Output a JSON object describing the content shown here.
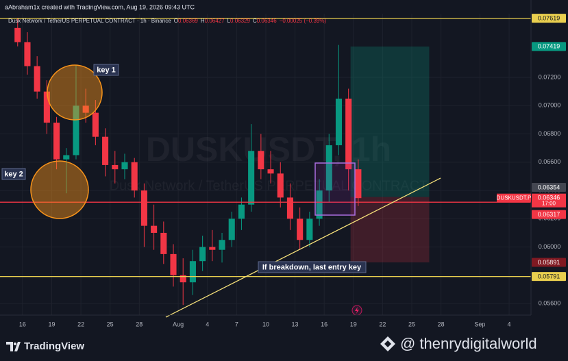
{
  "header": {
    "attribution": "aAbraham1x created with TradingView.com, Aug 19, 2026 09:43 UTC"
  },
  "chart_data": {
    "type": "candlestick",
    "symbol": "Dusk Network / TetherUS PERPETUAL CONTRACT · 1h · Binance",
    "legend_values": [
      {
        "label": "O",
        "value": "0.06369"
      },
      {
        "label": "H",
        "value": "0.06427"
      },
      {
        "label": "L",
        "value": "0.06329"
      },
      {
        "label": "C",
        "value": "0.06346"
      }
    ],
    "change": "−0.00025 (−0.39%)",
    "watermark": "DUSKUSDT, 1h",
    "watermark_subtitle": "Dusk Network / TetherUS PERPETUAL CONTRACT",
    "x": [
      "2026-07-15",
      "2026-07-16",
      "2026-07-17",
      "2026-07-18",
      "2026-07-19",
      "2026-07-20",
      "2026-07-21",
      "2026-07-22",
      "2026-07-23",
      "2026-07-24",
      "2026-07-25",
      "2026-07-26",
      "2026-07-27",
      "2026-07-28",
      "2026-07-29",
      "2026-07-30",
      "2026-07-31",
      "2026-08-01",
      "2026-08-02",
      "2026-08-03",
      "2026-08-04",
      "2026-08-05",
      "2026-08-06",
      "2026-08-07",
      "2026-08-08",
      "2026-08-09",
      "2026-08-10",
      "2026-08-11",
      "2026-08-12",
      "2026-08-13",
      "2026-08-14",
      "2026-08-15",
      "2026-08-16",
      "2026-08-17",
      "2026-08-18",
      "2026-08-19"
    ],
    "open": [
      0.0755,
      0.0745,
      0.0728,
      0.071,
      0.0688,
      0.0662,
      0.0665,
      0.07,
      0.0695,
      0.0678,
      0.0658,
      0.0655,
      0.066,
      0.064,
      0.0615,
      0.061,
      0.0595,
      0.058,
      0.0575,
      0.059,
      0.06,
      0.0598,
      0.0605,
      0.062,
      0.063,
      0.0668,
      0.0655,
      0.0652,
      0.0635,
      0.062,
      0.0605,
      0.062,
      0.064,
      0.0672,
      0.0705,
      0.0655
    ],
    "high": [
      0.0762,
      0.0752,
      0.0735,
      0.0718,
      0.0692,
      0.067,
      0.0729,
      0.0712,
      0.0704,
      0.0684,
      0.0668,
      0.0666,
      0.0663,
      0.0645,
      0.063,
      0.0618,
      0.0602,
      0.0592,
      0.0598,
      0.0608,
      0.0612,
      0.061,
      0.0625,
      0.0635,
      0.0687,
      0.068,
      0.0668,
      0.066,
      0.0645,
      0.0628,
      0.0625,
      0.0648,
      0.068,
      0.0743,
      0.0712,
      0.0662
    ],
    "low": [
      0.0742,
      0.0722,
      0.0705,
      0.068,
      0.0655,
      0.0638,
      0.0662,
      0.0688,
      0.0672,
      0.065,
      0.0645,
      0.0648,
      0.0635,
      0.06,
      0.0598,
      0.0588,
      0.0572,
      0.0559,
      0.0566,
      0.0583,
      0.059,
      0.0589,
      0.06,
      0.0612,
      0.0625,
      0.0648,
      0.0645,
      0.0628,
      0.0612,
      0.0598,
      0.06,
      0.0615,
      0.0632,
      0.0665,
      0.064,
      0.0629
    ],
    "close": [
      0.0745,
      0.0728,
      0.071,
      0.0688,
      0.0662,
      0.0665,
      0.07,
      0.0695,
      0.0678,
      0.0658,
      0.0655,
      0.066,
      0.064,
      0.0615,
      0.061,
      0.0595,
      0.058,
      0.0575,
      0.059,
      0.06,
      0.0598,
      0.0605,
      0.062,
      0.063,
      0.0668,
      0.0655,
      0.0652,
      0.0635,
      0.062,
      0.0605,
      0.062,
      0.064,
      0.0672,
      0.0705,
      0.0655,
      0.06346
    ],
    "colors": {
      "up": "#089981",
      "down": "#f23645"
    },
    "xlim": [
      "2026-07-14T06:00",
      "2026-09-06T06:00"
    ],
    "xticks": [
      {
        "value": "2026-07-16",
        "label": "16"
      },
      {
        "value": "2026-07-19",
        "label": "19"
      },
      {
        "value": "2026-07-22",
        "label": "22"
      },
      {
        "value": "2026-07-25",
        "label": "25"
      },
      {
        "value": "2026-07-28",
        "label": "28"
      },
      {
        "value": "2026-08-01",
        "label": "Aug"
      },
      {
        "value": "2026-08-04",
        "label": "4"
      },
      {
        "value": "2026-08-07",
        "label": "7"
      },
      {
        "value": "2026-08-10",
        "label": "10"
      },
      {
        "value": "2026-08-13",
        "label": "13"
      },
      {
        "value": "2026-08-16",
        "label": "16"
      },
      {
        "value": "2026-08-19",
        "label": "19"
      },
      {
        "value": "2026-08-22",
        "label": "22"
      },
      {
        "value": "2026-08-25",
        "label": "25"
      },
      {
        "value": "2026-08-28",
        "label": "28"
      },
      {
        "value": "2026-09-01",
        "label": "Sep"
      },
      {
        "value": "2026-09-04",
        "label": "4"
      }
    ],
    "ylim": [
      0.05518,
      0.07651
    ],
    "yticks": [
      {
        "value": 0.056,
        "label": "0.05600"
      },
      {
        "value": 0.058,
        "label": "0.05800"
      },
      {
        "value": 0.06,
        "label": "0.06000"
      },
      {
        "value": 0.062,
        "label": "0.06200"
      },
      {
        "value": 0.064,
        "label": "0.06400"
      },
      {
        "value": 0.066,
        "label": "0.06600"
      },
      {
        "value": 0.068,
        "label": "0.06800"
      },
      {
        "value": 0.07,
        "label": "0.07000"
      },
      {
        "value": 0.072,
        "label": "0.07200"
      }
    ],
    "grid": true,
    "price_lines": [
      {
        "value": 0.07619,
        "label": "0.07619",
        "color": "#e9cf4f"
      },
      {
        "value": 0.05791,
        "label": "0.05791",
        "color": "#e9cf4f"
      },
      {
        "value": 0.06317,
        "label": "0.06317",
        "color": "#f23645"
      }
    ],
    "last_price": {
      "value": 0.06346,
      "label": "0.06346",
      "symbol": "DUSKUSDT.P",
      "countdown": "17:00",
      "color": "#f23645"
    },
    "position": {
      "start": "2026-08-18T17:00",
      "end": "2026-08-26T19:00",
      "entry": {
        "value": 0.06354,
        "label": "0.06354"
      },
      "target": {
        "value": 0.07419,
        "label": "0.07419"
      },
      "stop": {
        "value": 0.05891,
        "label": "0.05891"
      }
    }
  },
  "annotations": [
    {
      "text": "key 1"
    },
    {
      "text": "key 2"
    },
    {
      "text": "If breakdown, last entry key"
    }
  ],
  "footer": {
    "brand": "TradingView",
    "watermark": "@ thenrydigitalworld"
  }
}
